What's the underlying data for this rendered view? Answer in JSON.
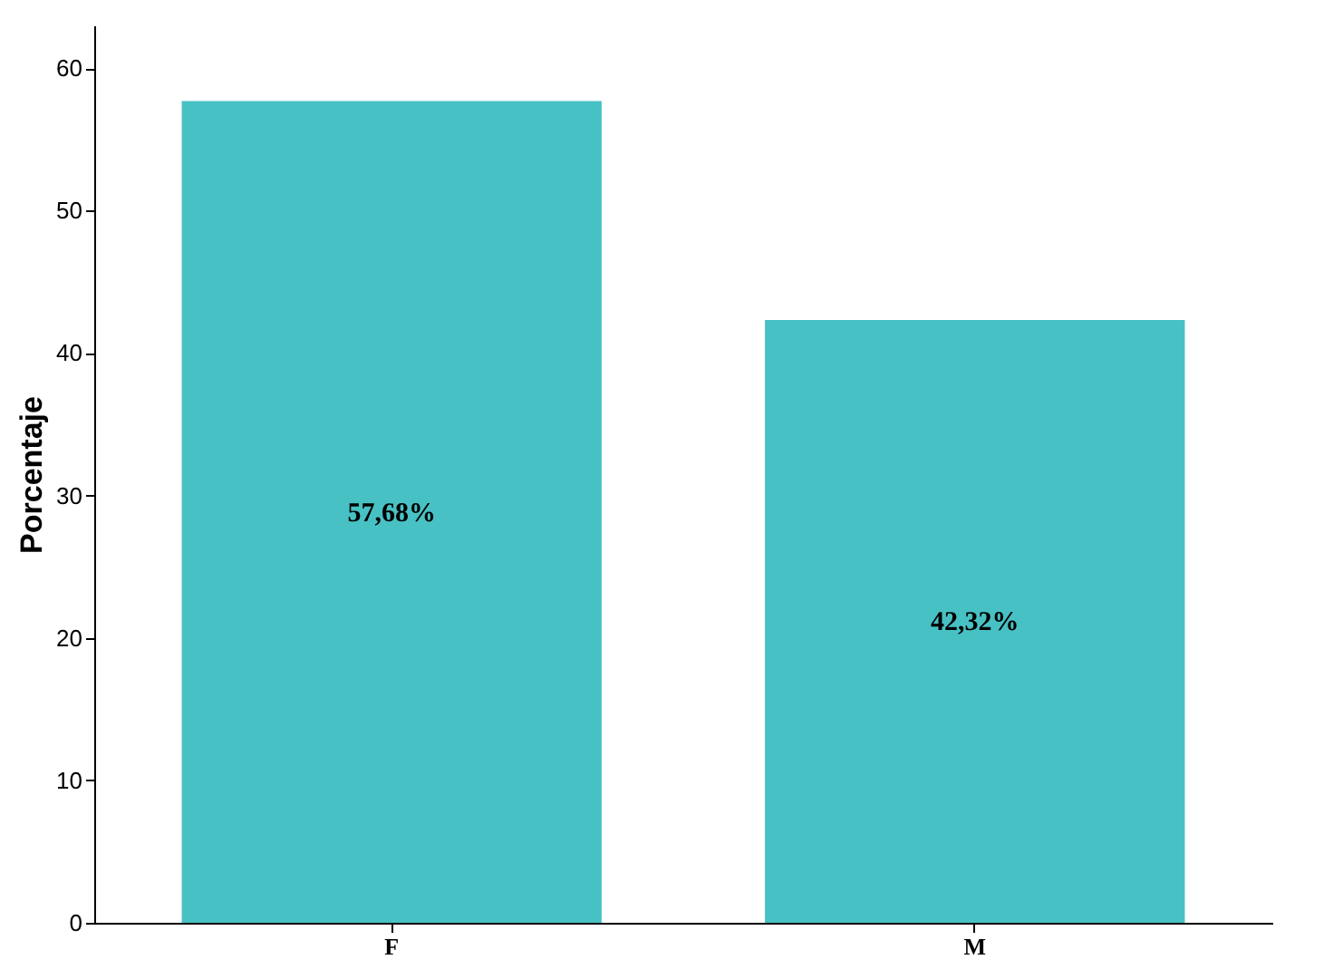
{
  "chart_data": {
    "type": "bar",
    "ylabel": "Porcentaje",
    "categories": [
      "F",
      "M"
    ],
    "values": [
      57.68,
      42.32
    ],
    "value_labels": [
      "57,68%",
      "42,32%"
    ],
    "color": "#48c1c4",
    "ylim": [
      0,
      63
    ],
    "yticks": [
      0,
      10,
      20,
      30,
      40,
      50,
      60
    ],
    "grid": false
  }
}
